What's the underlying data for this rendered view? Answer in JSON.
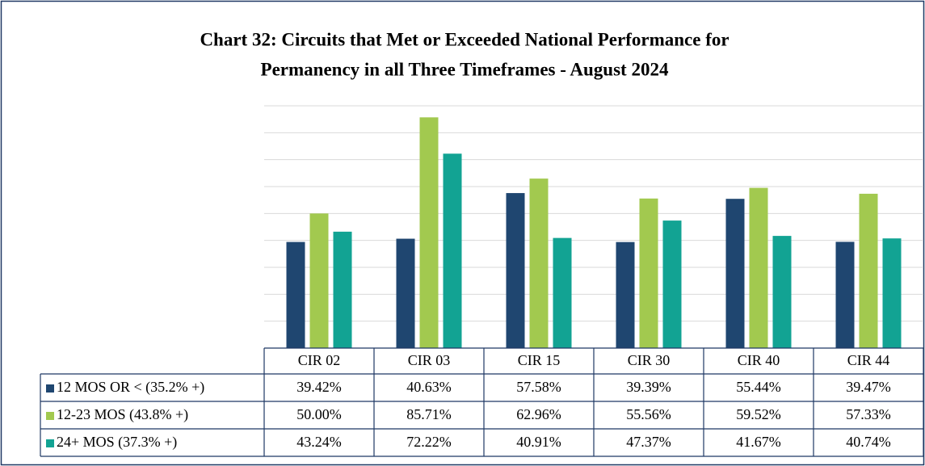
{
  "chart_data": {
    "type": "bar",
    "title": [
      "Chart 32: Circuits that Met or Exceeded National Performance for",
      "Permanency in all Three Timeframes - August 2024"
    ],
    "categories": [
      "CIR 02",
      "CIR 03",
      "CIR 15",
      "CIR 30",
      "CIR 40",
      "CIR 44"
    ],
    "series": [
      {
        "name": "12 MOS OR < (35.2% +)",
        "color": "#1f4670",
        "values": [
          39.42,
          40.63,
          57.58,
          39.39,
          55.44,
          39.47
        ],
        "value_labels": [
          "39.42%",
          "40.63%",
          "57.58%",
          "39.39%",
          "55.44%",
          "39.47%"
        ]
      },
      {
        "name": "12-23 MOS (43.8% +)",
        "color": "#a2c94f",
        "values": [
          50.0,
          85.71,
          62.96,
          55.56,
          59.52,
          57.33
        ],
        "value_labels": [
          "50.00%",
          "85.71%",
          "62.96%",
          "55.56%",
          "59.52%",
          "57.33%"
        ]
      },
      {
        "name": "24+ MOS (37.3% +)",
        "color": "#12a393",
        "values": [
          43.24,
          72.22,
          40.91,
          47.37,
          41.67,
          40.74
        ],
        "value_labels": [
          "43.24%",
          "72.22%",
          "40.91%",
          "47.37%",
          "41.67%",
          "40.74%"
        ]
      }
    ],
    "ylim": [
      0,
      90
    ],
    "yticks": [
      0,
      10,
      20,
      30,
      40,
      50,
      60,
      70,
      80,
      90
    ],
    "grid": true,
    "legend": "table"
  }
}
